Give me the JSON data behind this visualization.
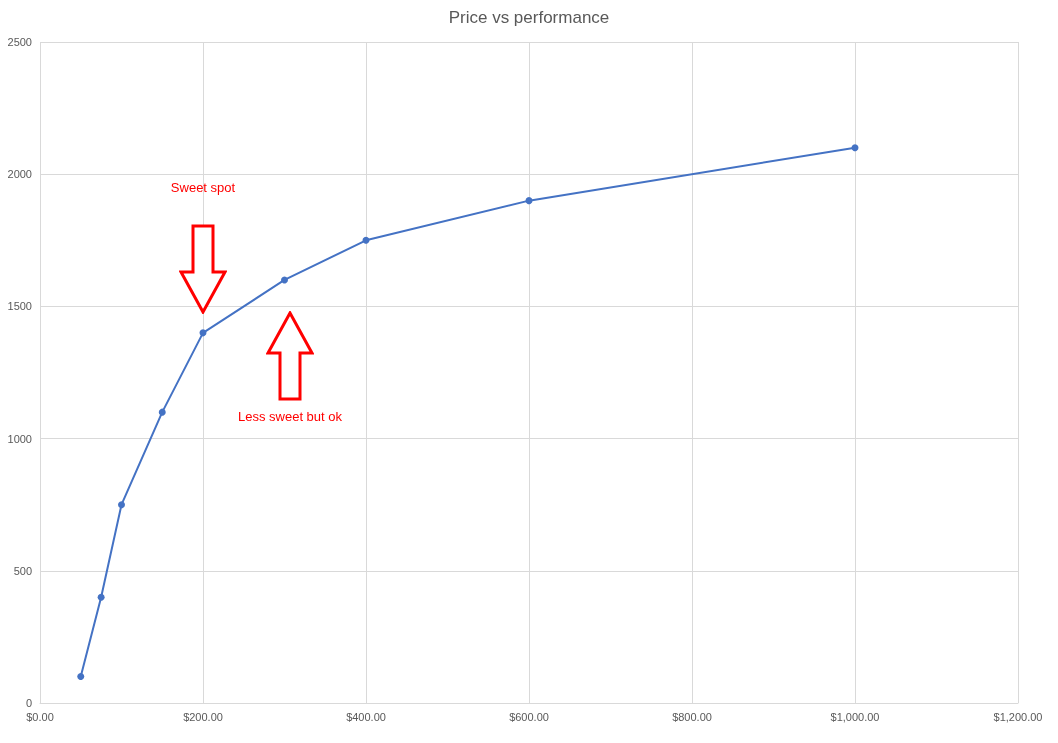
{
  "chart_data": {
    "type": "line",
    "title": "Price vs performance",
    "x": [
      50,
      75,
      100,
      150,
      200,
      300,
      400,
      600,
      1000
    ],
    "series": [
      {
        "color": "#4472c4",
        "values": [
          100,
          400,
          750,
          1100,
          1400,
          1600,
          1750,
          1900,
          2100
        ]
      }
    ],
    "xlim": [
      0,
      1200
    ],
    "xticks": [
      {
        "value": 0,
        "label": "$0.00"
      },
      {
        "value": 200,
        "label": "$200.00"
      },
      {
        "value": 400,
        "label": "$400.00"
      },
      {
        "value": 600,
        "label": "$600.00"
      },
      {
        "value": 800,
        "label": "$800.00"
      },
      {
        "value": 1000,
        "label": "$1,000.00"
      },
      {
        "value": 1200,
        "label": "$1,200.00"
      }
    ],
    "ylim": [
      0,
      2500
    ],
    "yticks": [
      0,
      500,
      1000,
      1500,
      2000,
      2500
    ],
    "grid": true,
    "marker": "circle",
    "line_style": "solid",
    "annotations": [
      "Sweet spot",
      "Less sweet but ok"
    ]
  }
}
